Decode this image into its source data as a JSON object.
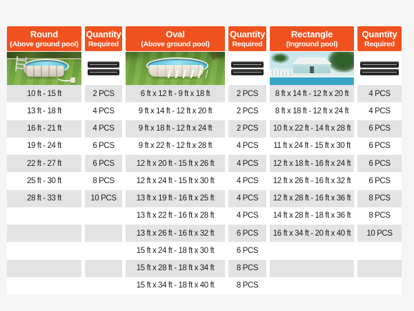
{
  "colors": {
    "header_orange": "#f0521f",
    "row_alt_gray": "#e3e3e3",
    "page_background": "#f5f5f6",
    "text": "#1c1c1e",
    "strip_bar_black": "#1e1e1e"
  },
  "images": {
    "round_photo": "round-above-ground-pool-photo",
    "oval_photo": "oval-above-ground-pool-photo",
    "rectangle_photo": "inground-pool-house-photo",
    "quantity_image": "black-panel-strips"
  },
  "chart_data": {
    "type": "table",
    "columns": [
      {
        "title": "Round",
        "subtitle": "(Above ground pool)",
        "image": "round-above-ground-pool-photo"
      },
      {
        "title": "Quantity",
        "subtitle": "Required",
        "image": "black-panel-strips"
      },
      {
        "title": "Oval",
        "subtitle": "(Above ground pool)",
        "image": "oval-above-ground-pool-photo"
      },
      {
        "title": "Quantity",
        "subtitle": "Required",
        "image": "black-panel-strips"
      },
      {
        "title": "Rectangle",
        "subtitle": "(Inground pool)",
        "image": "inground-pool-house-photo"
      },
      {
        "title": "Quantity",
        "subtitle": "Required",
        "image": "black-panel-strips"
      }
    ],
    "rows": [
      [
        "10 ft - 15 ft",
        "2 PCS",
        "6 ft x 12 ft - 9 ft x 18 ft",
        "2 PCS",
        "8 ft x 14 ft - 12 ft x 20 ft",
        "4 PCS"
      ],
      [
        "13 ft - 18 ft",
        "4 PCS",
        "9 ft x 14 ft - 12 ft x 20 ft",
        "2 PCS",
        "8 ft x 18 ft - 12 ft x 24 ft",
        "4 PCS"
      ],
      [
        "16 ft - 21 ft",
        "4 PCS",
        "9 ft x 18 ft - 12 ft x 24 ft",
        "2 PCS",
        "10 ft x 22 ft - 14 ft x 28 ft",
        "6 PCS"
      ],
      [
        "19 ft - 24 ft",
        "6 PCS",
        "9 ft x 22 ft - 12 ft x 28 ft",
        "4 PCS",
        "11 ft x 24 ft - 15 ft x 30 ft",
        "6 PCS"
      ],
      [
        "22 ft - 27 ft",
        "6 PCS",
        "12 ft x 20 ft - 15 ft x 26 ft",
        "4 PCS",
        "12 ft x 18 ft - 16 ft x 24 ft",
        "6 PCS"
      ],
      [
        "25 ft - 30 ft",
        "8 PCS",
        "12 ft x 24 ft - 15 ft x 30 ft",
        "4 PCS",
        "12 ft x 26 ft - 16 ft x 32 ft",
        "6 PCS"
      ],
      [
        "28 ft - 33 ft",
        "10 PCS",
        "13 ft x 19 ft - 16 ft x 25 ft",
        "4 PCS",
        "12 ft x 28 ft - 16 ft x 36 ft",
        "8 PCS"
      ],
      [
        "",
        "",
        "13 ft x 22 ft - 16 ft x 28 ft",
        "4 PCS",
        "14 ft x 28 ft - 18 ft x 36 ft",
        "8 PCS"
      ],
      [
        "",
        "",
        "13 ft x 26 ft - 16 ft x 32 ft",
        "6 PCS",
        "16 ft x 34 ft - 20 ft x 40 ft",
        "10 PCS"
      ],
      [
        "",
        "",
        "15 ft x 24 ft - 18 ft x 30 ft",
        "6 PCS",
        "",
        ""
      ],
      [
        "",
        "",
        "15 ft x 28 ft - 18 ft x 34 ft",
        "8 PCS",
        "",
        ""
      ],
      [
        "",
        "",
        "15 ft x 34 ft - 18 ft x 40 ft",
        "8 PCS",
        "",
        ""
      ]
    ]
  }
}
